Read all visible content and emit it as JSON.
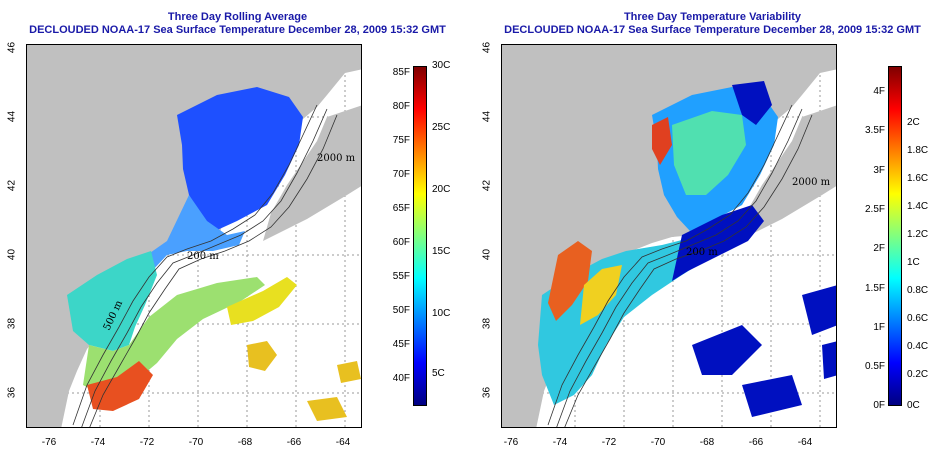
{
  "left_panel": {
    "title_line1": "Three Day Rolling Average",
    "title_line2": "DECLOUDED NOAA-17 Sea Surface Temperature December 28, 2009 15:32 GMT",
    "colorbar": {
      "fahrenheit_labels": [
        "85F",
        "80F",
        "75F",
        "70F",
        "65F",
        "60F",
        "55F",
        "50F",
        "45F",
        "40F"
      ],
      "celsius_labels": [
        "30C",
        "25C",
        "20C",
        "15C",
        "10C",
        "5C"
      ],
      "colors": [
        "#000080",
        "#0000ff",
        "#0080ff",
        "#00ffff",
        "#80ff80",
        "#ffff00",
        "#ff8000",
        "#ff0000",
        "#800000"
      ]
    }
  },
  "right_panel": {
    "title_line1": "Three Day Temperature Variability",
    "title_line2": "DECLOUDED NOAA-17 Sea Surface Temperature December 28, 2009 15:32 GMT",
    "colorbar": {
      "fahrenheit_labels": [
        "4F",
        "3.5F",
        "3F",
        "2.5F",
        "2F",
        "1.5F",
        "1F",
        "0.5F",
        "0F"
      ],
      "celsius_labels": [
        "2C",
        "1.8C",
        "1.6C",
        "1.4C",
        "1.2C",
        "1C",
        "0.8C",
        "0.6C",
        "0.4C",
        "0.2C",
        "0C"
      ],
      "colors": [
        "#000080",
        "#0000ff",
        "#0080ff",
        "#00ffff",
        "#80ff80",
        "#ffff00",
        "#ff8000",
        "#ff0000",
        "#800000"
      ]
    }
  },
  "map": {
    "x_ticks": [
      "-76",
      "-74",
      "-72",
      "-70",
      "-68",
      "-66",
      "-64"
    ],
    "y_ticks": [
      "36",
      "38",
      "40",
      "42",
      "44",
      "46"
    ],
    "contour_labels": [
      "2000 m",
      "200 m",
      "500 m",
      "2000 m",
      "200 m"
    ],
    "land_color": "#c0c0c0"
  }
}
